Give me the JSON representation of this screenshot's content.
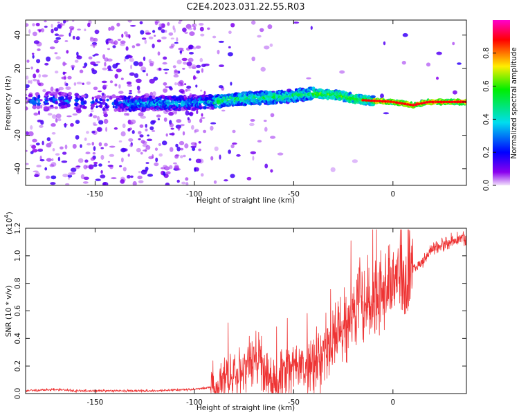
{
  "title": "C2E4.2023.031.22.55.R03",
  "chart_data": [
    {
      "type": "heatmap",
      "xlabel": "Height of straight line (km)",
      "ylabel": "Frequency (Hz)",
      "xlim": [
        -185,
        37
      ],
      "ylim": [
        -50,
        49
      ],
      "xticks": [
        -150,
        -100,
        -50,
        0
      ],
      "xtick_labels": [
        "-150",
        "-100",
        "-50",
        "0"
      ],
      "yticks": [
        -40,
        -20,
        0,
        20,
        40
      ],
      "ytick_labels": [
        "-40",
        "-20",
        "0",
        "20",
        "40"
      ],
      "ridge": [
        {
          "x": -185,
          "y": 0
        },
        {
          "x": -170,
          "y": 1
        },
        {
          "x": -140,
          "y": -1
        },
        {
          "x": -110,
          "y": -1
        },
        {
          "x": -90,
          "y": 0
        },
        {
          "x": -75,
          "y": 2
        },
        {
          "x": -55,
          "y": 3
        },
        {
          "x": -40,
          "y": 5
        },
        {
          "x": -28,
          "y": 4
        },
        {
          "x": -15,
          "y": 1
        },
        {
          "x": 0,
          "y": 0
        },
        {
          "x": 10,
          "y": -2
        },
        {
          "x": 18,
          "y": 0
        },
        {
          "x": 37,
          "y": 0
        }
      ]
    },
    {
      "type": "line",
      "xlabel": "Height of straight line (km)",
      "ylabel": "SNR (10 * v/v)",
      "multiplier": "(x10",
      "multiplier_exponent": "4",
      "multiplier_close": ")",
      "xlim": [
        -185,
        37
      ],
      "ylim": [
        0,
        1.2
      ],
      "xticks": [
        -150,
        -100,
        -50,
        0
      ],
      "xtick_labels": [
        "-150",
        "-100",
        "-50",
        "0"
      ],
      "yticks": [
        0,
        0.2,
        0.4,
        0.6,
        0.8,
        1.0,
        1.2
      ],
      "ytick_labels": [
        "0.0",
        "0.2",
        "0.4",
        "0.6",
        "0.8",
        "1.0",
        "1.2"
      ],
      "series": [
        {
          "name": "SNR",
          "color": "#ee3333",
          "x": [
            -185,
            -170,
            -160,
            -140,
            -120,
            -100,
            -90,
            -80,
            -75,
            -70,
            -65,
            -60,
            -55,
            -50,
            -45,
            -40,
            -35,
            -30,
            -25,
            -20,
            -16,
            -12,
            -8,
            -4,
            0,
            5,
            10,
            15,
            20,
            25,
            30,
            37
          ],
          "y": [
            0.02,
            0.03,
            0.02,
            0.02,
            0.02,
            0.03,
            0.05,
            0.15,
            0.2,
            0.25,
            0.18,
            0.1,
            0.15,
            0.22,
            0.18,
            0.2,
            0.28,
            0.4,
            0.5,
            0.55,
            0.72,
            0.6,
            0.7,
            0.75,
            0.8,
            0.85,
            0.9,
            0.95,
            1.05,
            1.08,
            1.12,
            1.13
          ]
        }
      ]
    }
  ],
  "colorbar": {
    "label": "Normalized spectral amplitude",
    "ticks": [
      "0.0",
      "0.2",
      "0.4",
      "0.6",
      "0.8"
    ],
    "tick_values": [
      0.0,
      0.2,
      0.4,
      0.6,
      0.8
    ],
    "range": [
      0,
      1
    ],
    "colors": [
      "#f2e2fb",
      "#8a00ee",
      "#0000ff",
      "#00ddee",
      "#00ee00",
      "#ffee00",
      "#ff0000",
      "#ff00cc"
    ]
  }
}
